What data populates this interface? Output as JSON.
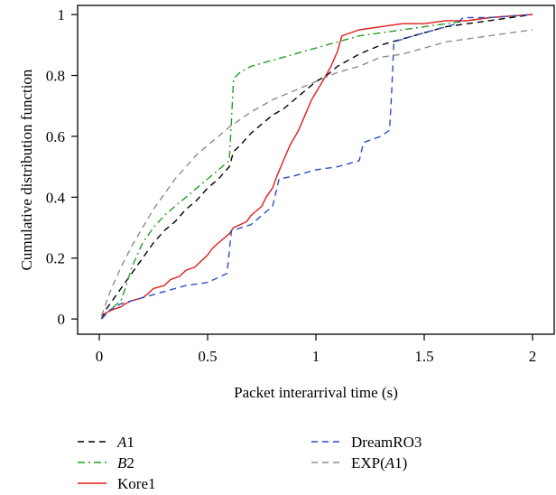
{
  "chart_data": {
    "type": "line",
    "xlabel": "Packet interarrival time (s)",
    "ylabel": "Cumulative distribution function",
    "xlim": [
      -0.1,
      2.1
    ],
    "ylim": [
      -0.05,
      1.03
    ],
    "x_ticks": [
      0,
      0.5,
      1,
      1.5,
      2
    ],
    "x_tick_labels": [
      "0",
      "0.5",
      "1",
      "1.5",
      "2"
    ],
    "y_ticks": [
      0,
      0.2,
      0.4,
      0.6,
      0.8,
      1
    ],
    "y_tick_labels": [
      "0",
      "0.2",
      "0.4",
      "0.6",
      "0.8",
      "1"
    ],
    "grid": false,
    "legend_position": "below",
    "series": [
      {
        "name": "A1",
        "color": "#000000",
        "dash": "dashed",
        "points": [
          [
            0.01,
            0
          ],
          [
            0.03,
            0.03
          ],
          [
            0.06,
            0.06
          ],
          [
            0.1,
            0.1
          ],
          [
            0.15,
            0.15
          ],
          [
            0.2,
            0.2
          ],
          [
            0.25,
            0.25
          ],
          [
            0.3,
            0.29
          ],
          [
            0.35,
            0.32
          ],
          [
            0.4,
            0.36
          ],
          [
            0.45,
            0.39
          ],
          [
            0.5,
            0.43
          ],
          [
            0.55,
            0.46
          ],
          [
            0.6,
            0.5
          ],
          [
            0.62,
            0.55
          ],
          [
            0.65,
            0.57
          ],
          [
            0.7,
            0.61
          ],
          [
            0.75,
            0.64
          ],
          [
            0.8,
            0.67
          ],
          [
            0.85,
            0.69
          ],
          [
            0.9,
            0.72
          ],
          [
            0.95,
            0.75
          ],
          [
            1.0,
            0.78
          ],
          [
            1.05,
            0.8
          ],
          [
            1.1,
            0.83
          ],
          [
            1.2,
            0.87
          ],
          [
            1.3,
            0.9
          ],
          [
            1.4,
            0.92
          ],
          [
            1.5,
            0.94
          ],
          [
            1.6,
            0.96
          ],
          [
            1.7,
            0.97
          ],
          [
            1.8,
            0.98
          ],
          [
            1.9,
            0.99
          ],
          [
            2.0,
            1.0
          ]
        ]
      },
      {
        "name": "B2",
        "color": "#22a022",
        "dash": "dashdot",
        "points": [
          [
            0.01,
            0
          ],
          [
            0.05,
            0.03
          ],
          [
            0.1,
            0.06
          ],
          [
            0.12,
            0.1
          ],
          [
            0.15,
            0.17
          ],
          [
            0.2,
            0.25
          ],
          [
            0.25,
            0.3
          ],
          [
            0.3,
            0.34
          ],
          [
            0.35,
            0.37
          ],
          [
            0.4,
            0.4
          ],
          [
            0.45,
            0.43
          ],
          [
            0.5,
            0.46
          ],
          [
            0.55,
            0.49
          ],
          [
            0.6,
            0.52
          ],
          [
            0.61,
            0.65
          ],
          [
            0.62,
            0.79
          ],
          [
            0.65,
            0.81
          ],
          [
            0.7,
            0.83
          ],
          [
            0.8,
            0.85
          ],
          [
            0.9,
            0.87
          ],
          [
            1.0,
            0.89
          ],
          [
            1.1,
            0.91
          ],
          [
            1.2,
            0.93
          ],
          [
            1.3,
            0.94
          ],
          [
            1.4,
            0.95
          ],
          [
            1.5,
            0.96
          ],
          [
            1.6,
            0.97
          ],
          [
            1.7,
            0.98
          ],
          [
            1.8,
            0.99
          ],
          [
            2.0,
            1.0
          ]
        ]
      },
      {
        "name": "Kore1",
        "color": "#e41a1c",
        "dash": "solid",
        "points": [
          [
            0.01,
            0
          ],
          [
            0.03,
            0.02
          ],
          [
            0.06,
            0.03
          ],
          [
            0.1,
            0.04
          ],
          [
            0.12,
            0.05
          ],
          [
            0.15,
            0.06
          ],
          [
            0.2,
            0.07
          ],
          [
            0.22,
            0.08
          ],
          [
            0.25,
            0.1
          ],
          [
            0.3,
            0.11
          ],
          [
            0.33,
            0.13
          ],
          [
            0.37,
            0.14
          ],
          [
            0.4,
            0.16
          ],
          [
            0.44,
            0.17
          ],
          [
            0.47,
            0.19
          ],
          [
            0.5,
            0.21
          ],
          [
            0.52,
            0.23
          ],
          [
            0.55,
            0.25
          ],
          [
            0.6,
            0.28
          ],
          [
            0.62,
            0.3
          ],
          [
            0.65,
            0.31
          ],
          [
            0.68,
            0.32
          ],
          [
            0.7,
            0.34
          ],
          [
            0.75,
            0.37
          ],
          [
            0.77,
            0.4
          ],
          [
            0.8,
            0.43
          ],
          [
            0.82,
            0.47
          ],
          [
            0.85,
            0.52
          ],
          [
            0.88,
            0.57
          ],
          [
            0.92,
            0.62
          ],
          [
            0.95,
            0.67
          ],
          [
            0.98,
            0.72
          ],
          [
            1.03,
            0.78
          ],
          [
            1.07,
            0.83
          ],
          [
            1.1,
            0.88
          ],
          [
            1.12,
            0.93
          ],
          [
            1.2,
            0.95
          ],
          [
            1.3,
            0.96
          ],
          [
            1.4,
            0.97
          ],
          [
            1.5,
            0.97
          ],
          [
            1.6,
            0.98
          ],
          [
            1.7,
            0.98
          ],
          [
            1.8,
            0.99
          ],
          [
            2.0,
            1.0
          ]
        ]
      },
      {
        "name": "DreamRO3",
        "color": "#2b4fbf",
        "dash": "dashed",
        "points": [
          [
            0.01,
            0
          ],
          [
            0.05,
            0.03
          ],
          [
            0.1,
            0.05
          ],
          [
            0.2,
            0.07
          ],
          [
            0.3,
            0.09
          ],
          [
            0.4,
            0.11
          ],
          [
            0.5,
            0.12
          ],
          [
            0.59,
            0.15
          ],
          [
            0.6,
            0.22
          ],
          [
            0.61,
            0.29
          ],
          [
            0.7,
            0.31
          ],
          [
            0.8,
            0.37
          ],
          [
            0.83,
            0.46
          ],
          [
            0.9,
            0.47
          ],
          [
            1.0,
            0.49
          ],
          [
            1.1,
            0.5
          ],
          [
            1.2,
            0.52
          ],
          [
            1.22,
            0.58
          ],
          [
            1.3,
            0.6
          ],
          [
            1.34,
            0.62
          ],
          [
            1.35,
            0.75
          ],
          [
            1.36,
            0.91
          ],
          [
            1.45,
            0.93
          ],
          [
            1.55,
            0.95
          ],
          [
            1.65,
            0.97
          ],
          [
            1.68,
            0.99
          ],
          [
            1.8,
            0.99
          ],
          [
            2.0,
            1.0
          ]
        ]
      },
      {
        "name": "EXP(A1)",
        "color": "#8c8c8c",
        "dash": "dashed",
        "points": [
          [
            0.01,
            0.01
          ],
          [
            0.05,
            0.09
          ],
          [
            0.1,
            0.17
          ],
          [
            0.15,
            0.24
          ],
          [
            0.2,
            0.3
          ],
          [
            0.25,
            0.36
          ],
          [
            0.3,
            0.41
          ],
          [
            0.35,
            0.46
          ],
          [
            0.4,
            0.5
          ],
          [
            0.45,
            0.54
          ],
          [
            0.5,
            0.57
          ],
          [
            0.55,
            0.6
          ],
          [
            0.6,
            0.63
          ],
          [
            0.7,
            0.68
          ],
          [
            0.8,
            0.72
          ],
          [
            0.9,
            0.75
          ],
          [
            1.0,
            0.78
          ],
          [
            1.1,
            0.81
          ],
          [
            1.2,
            0.83
          ],
          [
            1.3,
            0.86
          ],
          [
            1.4,
            0.87
          ],
          [
            1.5,
            0.89
          ],
          [
            1.6,
            0.91
          ],
          [
            1.7,
            0.92
          ],
          [
            1.8,
            0.93
          ],
          [
            1.9,
            0.94
          ],
          [
            2.0,
            0.95
          ]
        ]
      }
    ]
  },
  "legend": {
    "items": [
      {
        "prefix": "",
        "ital": "A",
        "suffix": "1"
      },
      {
        "prefix": "",
        "ital": "B",
        "suffix": "2"
      },
      {
        "prefix": "Kore1",
        "ital": "",
        "suffix": ""
      },
      {
        "prefix": "DreamRO3",
        "ital": "",
        "suffix": ""
      },
      {
        "prefix": "EXP(",
        "ital": "A",
        "suffix": "1)"
      }
    ]
  }
}
